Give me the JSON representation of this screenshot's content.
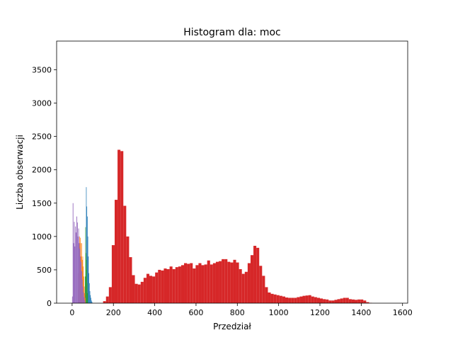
{
  "chart_data": {
    "type": "bar",
    "title": "Histogram dla: moc",
    "xlabel": "Przedział",
    "ylabel": "Liczba obserwacji",
    "xlim": [
      -75,
      1625
    ],
    "ylim": [
      0,
      3930
    ],
    "xticks": [
      0,
      200,
      400,
      600,
      800,
      1000,
      1200,
      1400,
      1600
    ],
    "yticks": [
      0,
      500,
      1000,
      1500,
      2000,
      2500,
      3000,
      3500
    ],
    "grid": false,
    "series": [
      {
        "color": "#1f77b4",
        "bin_width": 2.5,
        "bins": [
          [
            60,
            30
          ],
          [
            62.5,
            120
          ],
          [
            65,
            400
          ],
          [
            67.5,
            1740
          ],
          [
            70,
            1450
          ],
          [
            72.5,
            1300
          ],
          [
            75,
            1000
          ],
          [
            77.5,
            700
          ],
          [
            80,
            450
          ],
          [
            82.5,
            300
          ],
          [
            85,
            180
          ],
          [
            87.5,
            120
          ],
          [
            90,
            80
          ],
          [
            92.5,
            40
          ],
          [
            95,
            20
          ]
        ]
      },
      {
        "color": "#2ca02c",
        "bin_width": 2,
        "bins": [
          [
            62,
            400
          ],
          [
            64,
            1140
          ],
          [
            66,
            750
          ],
          [
            68,
            650
          ],
          [
            70,
            500
          ],
          [
            72,
            300
          ],
          [
            74,
            150
          ]
        ]
      },
      {
        "color": "#ff7f0e",
        "bin_width": 2.5,
        "bins": [
          [
            28,
            200
          ],
          [
            30.5,
            450
          ],
          [
            33,
            850
          ],
          [
            35.5,
            1000
          ],
          [
            38,
            980
          ],
          [
            40.5,
            900
          ],
          [
            43,
            700
          ],
          [
            45.5,
            900
          ],
          [
            48,
            650
          ],
          [
            50.5,
            700
          ],
          [
            53,
            550
          ],
          [
            55.5,
            400
          ],
          [
            58,
            250
          ],
          [
            60.5,
            150
          ],
          [
            63,
            80
          ]
        ]
      },
      {
        "color": "#9467bd",
        "bin_width": 3,
        "bins": [
          [
            0,
            100
          ],
          [
            3,
            1500
          ],
          [
            6,
            900
          ],
          [
            9,
            1220
          ],
          [
            12,
            850
          ],
          [
            15,
            1150
          ],
          [
            18,
            1060
          ],
          [
            21,
            1300
          ],
          [
            24,
            1210
          ],
          [
            27,
            1000
          ],
          [
            30,
            1120
          ],
          [
            33,
            900
          ],
          [
            36,
            820
          ],
          [
            39,
            700
          ],
          [
            42,
            620
          ],
          [
            45,
            480
          ],
          [
            48,
            350
          ],
          [
            51,
            250
          ],
          [
            54,
            160
          ],
          [
            57,
            90
          ],
          [
            60,
            40
          ]
        ]
      },
      {
        "color": "#d62728",
        "bin_width": 14,
        "bins": [
          [
            150,
            30
          ],
          [
            164,
            100
          ],
          [
            178,
            240
          ],
          [
            192,
            870
          ],
          [
            206,
            1550
          ],
          [
            220,
            2300
          ],
          [
            234,
            2280
          ],
          [
            248,
            1460
          ],
          [
            262,
            1000
          ],
          [
            276,
            690
          ],
          [
            290,
            420
          ],
          [
            304,
            290
          ],
          [
            318,
            280
          ],
          [
            332,
            320
          ],
          [
            346,
            380
          ],
          [
            360,
            440
          ],
          [
            374,
            410
          ],
          [
            388,
            400
          ],
          [
            402,
            460
          ],
          [
            416,
            500
          ],
          [
            430,
            490
          ],
          [
            444,
            520
          ],
          [
            458,
            510
          ],
          [
            472,
            550
          ],
          [
            486,
            510
          ],
          [
            500,
            540
          ],
          [
            514,
            550
          ],
          [
            528,
            570
          ],
          [
            542,
            600
          ],
          [
            556,
            590
          ],
          [
            570,
            600
          ],
          [
            584,
            520
          ],
          [
            598,
            570
          ],
          [
            612,
            600
          ],
          [
            626,
            570
          ],
          [
            640,
            580
          ],
          [
            654,
            640
          ],
          [
            668,
            580
          ],
          [
            682,
            600
          ],
          [
            696,
            620
          ],
          [
            710,
            630
          ],
          [
            724,
            660
          ],
          [
            738,
            660
          ],
          [
            752,
            620
          ],
          [
            766,
            610
          ],
          [
            780,
            650
          ],
          [
            794,
            610
          ],
          [
            808,
            510
          ],
          [
            822,
            440
          ],
          [
            836,
            470
          ],
          [
            850,
            600
          ],
          [
            864,
            720
          ],
          [
            878,
            860
          ],
          [
            892,
            830
          ],
          [
            906,
            560
          ],
          [
            920,
            410
          ],
          [
            934,
            240
          ],
          [
            948,
            160
          ],
          [
            962,
            140
          ],
          [
            976,
            130
          ],
          [
            990,
            120
          ],
          [
            1004,
            110
          ],
          [
            1018,
            100
          ],
          [
            1032,
            85
          ],
          [
            1046,
            80
          ],
          [
            1060,
            80
          ],
          [
            1074,
            80
          ],
          [
            1088,
            90
          ],
          [
            1102,
            100
          ],
          [
            1116,
            110
          ],
          [
            1130,
            115
          ],
          [
            1144,
            120
          ],
          [
            1158,
            100
          ],
          [
            1172,
            90
          ],
          [
            1186,
            80
          ],
          [
            1200,
            70
          ],
          [
            1214,
            60
          ],
          [
            1228,
            55
          ],
          [
            1242,
            40
          ],
          [
            1256,
            40
          ],
          [
            1270,
            50
          ],
          [
            1284,
            60
          ],
          [
            1298,
            70
          ],
          [
            1312,
            80
          ],
          [
            1326,
            80
          ],
          [
            1340,
            60
          ],
          [
            1354,
            55
          ],
          [
            1368,
            50
          ],
          [
            1382,
            55
          ],
          [
            1396,
            55
          ],
          [
            1410,
            40
          ],
          [
            1424,
            15
          ],
          [
            1438,
            5
          ]
        ]
      }
    ]
  }
}
